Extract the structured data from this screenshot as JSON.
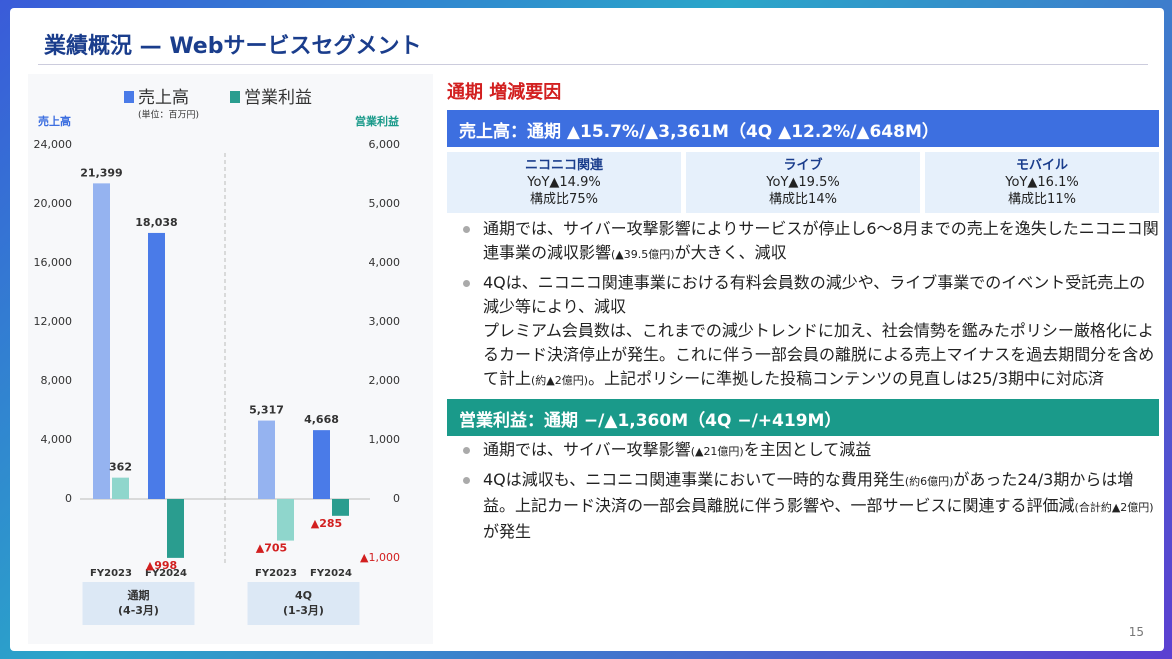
{
  "page_title": "業績概況 — Webサービスセグメント",
  "page_number": "15",
  "chart_data": {
    "type": "bar",
    "legend_note": "(単位：百万円)",
    "ylabel": "売上高",
    "y2label": "営業利益",
    "categories": [
      "FY2023",
      "FY2024",
      "FY2023",
      "FY2024"
    ],
    "groups": [
      {
        "label": "通期",
        "sub": "(4-3月)"
      },
      {
        "label": "4Q",
        "sub": "(1-3月)"
      }
    ],
    "series": [
      {
        "name": "売上高",
        "color": "#4a7be8",
        "colors": [
          "#95b3f0",
          "#4a7be8",
          "#95b3f0",
          "#4a7be8"
        ],
        "values": [
          21399,
          18038,
          5317,
          4668
        ],
        "value_labels": [
          "21,399",
          "18,038",
          "5,317",
          "4,668"
        ]
      },
      {
        "name": "営業利益",
        "axis": "y2",
        "color": "#2a9d8f",
        "colors": [
          "#8fd6cc",
          "#2a9d8f",
          "#8fd6cc",
          "#2a9d8f"
        ],
        "values": [
          362,
          -998,
          -705,
          -285
        ],
        "value_labels": [
          "362",
          "▲998",
          "▲705",
          "▲285"
        ]
      }
    ],
    "ylim": [
      -4000,
      24000
    ],
    "yticks": [
      {
        "value": 0,
        "label": "0"
      },
      {
        "value": 4000,
        "label": "4,000"
      },
      {
        "value": 8000,
        "label": "8,000"
      },
      {
        "value": 12000,
        "label": "12,000"
      },
      {
        "value": 16000,
        "label": "16,000"
      },
      {
        "value": 20000,
        "label": "20,000"
      },
      {
        "value": 24000,
        "label": "24,000"
      }
    ],
    "y2lim": [
      -1000,
      6000
    ],
    "y2ticks": [
      {
        "value": -1000,
        "label": "▲1,000"
      },
      {
        "value": 0,
        "label": "0"
      },
      {
        "value": 1000,
        "label": "1,000"
      },
      {
        "value": 2000,
        "label": "2,000"
      },
      {
        "value": 3000,
        "label": "3,000"
      },
      {
        "value": 4000,
        "label": "4,000"
      },
      {
        "value": 5000,
        "label": "5,000"
      },
      {
        "value": 6000,
        "label": "6,000"
      }
    ]
  },
  "factors": {
    "heading": "通期 増減要因",
    "revenue_bar": "売上高：通期 ▲15.7%/▲3,361M（4Q ▲12.2%/▲648M）",
    "boxes": [
      {
        "name": "ニコニコ関連",
        "yoy": "YoY▲14.9%",
        "share": "構成比75%"
      },
      {
        "name": "ライブ",
        "yoy": "YoY▲19.5%",
        "share": "構成比14%"
      },
      {
        "name": "モバイル",
        "yoy": "YoY▲16.1%",
        "share": "構成比11%"
      }
    ],
    "revenue_bullets": [
      [
        [
          {
            "text": "通期では、サイバー攻撃影響によりサービスが停止し6～8月までの売上を逸失したニコニコ関連事業の減収影響"
          },
          {
            "text": "(▲39.5億円)",
            "small": true
          },
          {
            "text": "が大きく、減収"
          }
        ]
      ],
      [
        [
          {
            "text": "4Qは、ニコニコ関連事業における有料会員数の減少や、ライブ事業でのイベント受託売上の減少等により、減収"
          }
        ],
        [
          {
            "text": "プレミアム会員数は、これまでの減少トレンドに加え、社会情勢を鑑みたポリシー厳格化によるカード決済停止が発生。これに伴う一部会員の離脱による売上マイナスを過去期間分を含めて計上"
          },
          {
            "text": "(約▲2億円)",
            "small": true
          },
          {
            "text": "。上記ポリシーに準拠した投稿コンテンツの見直しは25/3期中に対応済"
          }
        ]
      ]
    ],
    "profit_bar": "営業利益：通期 −/▲1,360M（4Q −/+419M）",
    "profit_bullets": [
      [
        [
          {
            "text": "通期では、サイバー攻撃影響"
          },
          {
            "text": "(▲21億円)",
            "small": true
          },
          {
            "text": "を主因として減益"
          }
        ]
      ],
      [
        [
          {
            "text": "4Qは減収も、ニコニコ関連事業において一時的な費用発生"
          },
          {
            "text": "(約6億円)",
            "small": true
          },
          {
            "text": "があった24/3期からは増益。上記カード決済の一部会員離脱に伴う影響や、一部サービスに関連する評価減"
          },
          {
            "text": "(合計約▲2億円)",
            "small": true
          },
          {
            "text": " が発生"
          }
        ]
      ]
    ]
  }
}
